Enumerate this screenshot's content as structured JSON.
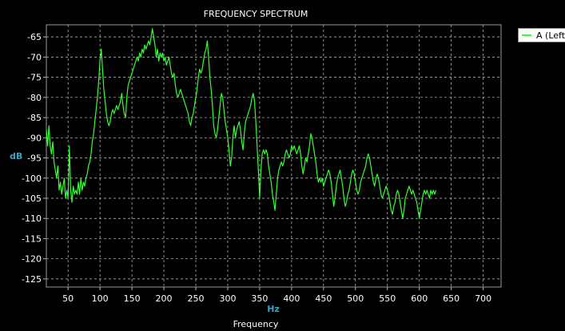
{
  "colors": {
    "background": "#000000",
    "grid": "#c8c8c8",
    "axis_label": "#3aa3c4",
    "text": "#ffffff"
  },
  "chart_data": {
    "type": "line",
    "title": "FREQUENCY SPECTRUM",
    "ylabel": "dB",
    "xlabel_units": "Hz",
    "footer_label": "Frequency",
    "grid": true,
    "legend_position": "top-right",
    "xlim": [
      16,
      728
    ],
    "ylim": [
      -127,
      -62
    ],
    "x_ticks": [
      50,
      100,
      150,
      200,
      250,
      300,
      350,
      400,
      450,
      500,
      550,
      600,
      650,
      700
    ],
    "y_ticks": [
      -65,
      -70,
      -75,
      -80,
      -85,
      -90,
      -95,
      -100,
      -105,
      -110,
      -115,
      -120,
      -125
    ],
    "series": [
      {
        "name": "A (Left)",
        "color": "#33ff33",
        "points": [
          [
            16,
            -88
          ],
          [
            18,
            -92
          ],
          [
            20,
            -87
          ],
          [
            22,
            -92
          ],
          [
            24,
            -94
          ],
          [
            26,
            -91
          ],
          [
            28,
            -96
          ],
          [
            30,
            -98
          ],
          [
            32,
            -100
          ],
          [
            34,
            -97
          ],
          [
            36,
            -103
          ],
          [
            38,
            -101
          ],
          [
            40,
            -104
          ],
          [
            42,
            -102
          ],
          [
            44,
            -100
          ],
          [
            46,
            -105
          ],
          [
            48,
            -103
          ],
          [
            50,
            -105
          ],
          [
            52,
            -92
          ],
          [
            54,
            -103
          ],
          [
            56,
            -106
          ],
          [
            58,
            -102
          ],
          [
            60,
            -104
          ],
          [
            62,
            -103
          ],
          [
            64,
            -104
          ],
          [
            66,
            -101
          ],
          [
            68,
            -104
          ],
          [
            70,
            -100
          ],
          [
            72,
            -103
          ],
          [
            74,
            -101
          ],
          [
            76,
            -102
          ],
          [
            78,
            -100
          ],
          [
            80,
            -99
          ],
          [
            82,
            -97
          ],
          [
            84,
            -96
          ],
          [
            86,
            -94
          ],
          [
            88,
            -91
          ],
          [
            90,
            -89
          ],
          [
            92,
            -86
          ],
          [
            94,
            -83
          ],
          [
            96,
            -80
          ],
          [
            98,
            -76
          ],
          [
            100,
            -71
          ],
          [
            102,
            -68
          ],
          [
            104,
            -73
          ],
          [
            106,
            -78
          ],
          [
            108,
            -81
          ],
          [
            110,
            -84
          ],
          [
            112,
            -86
          ],
          [
            114,
            -87
          ],
          [
            116,
            -86
          ],
          [
            118,
            -84
          ],
          [
            120,
            -83
          ],
          [
            122,
            -84
          ],
          [
            124,
            -83
          ],
          [
            126,
            -82
          ],
          [
            128,
            -83
          ],
          [
            130,
            -82
          ],
          [
            132,
            -81
          ],
          [
            134,
            -79
          ],
          [
            136,
            -82
          ],
          [
            138,
            -84
          ],
          [
            140,
            -85
          ],
          [
            142,
            -80
          ],
          [
            144,
            -77
          ],
          [
            146,
            -76
          ],
          [
            148,
            -75
          ],
          [
            150,
            -74
          ],
          [
            152,
            -73
          ],
          [
            154,
            -72
          ],
          [
            156,
            -71
          ],
          [
            158,
            -70
          ],
          [
            160,
            -71
          ],
          [
            162,
            -69
          ],
          [
            164,
            -70
          ],
          [
            166,
            -68
          ],
          [
            168,
            -69
          ],
          [
            170,
            -67
          ],
          [
            172,
            -68
          ],
          [
            174,
            -67
          ],
          [
            176,
            -66
          ],
          [
            178,
            -67
          ],
          [
            180,
            -65
          ],
          [
            182,
            -63
          ],
          [
            184,
            -65
          ],
          [
            186,
            -67
          ],
          [
            188,
            -70
          ],
          [
            190,
            -68
          ],
          [
            192,
            -71
          ],
          [
            194,
            -69
          ],
          [
            196,
            -70
          ],
          [
            198,
            -69
          ],
          [
            200,
            -71
          ],
          [
            202,
            -70
          ],
          [
            204,
            -72
          ],
          [
            206,
            -71
          ],
          [
            208,
            -70
          ],
          [
            210,
            -72
          ],
          [
            212,
            -74
          ],
          [
            214,
            -75
          ],
          [
            216,
            -74
          ],
          [
            218,
            -77
          ],
          [
            220,
            -79
          ],
          [
            222,
            -80
          ],
          [
            224,
            -79
          ],
          [
            226,
            -78
          ],
          [
            228,
            -79
          ],
          [
            230,
            -80
          ],
          [
            232,
            -81
          ],
          [
            234,
            -82
          ],
          [
            236,
            -83
          ],
          [
            238,
            -84
          ],
          [
            240,
            -86
          ],
          [
            242,
            -87
          ],
          [
            244,
            -85
          ],
          [
            246,
            -84
          ],
          [
            248,
            -82
          ],
          [
            250,
            -80
          ],
          [
            252,
            -78
          ],
          [
            254,
            -75
          ],
          [
            256,
            -73
          ],
          [
            258,
            -74
          ],
          [
            260,
            -73
          ],
          [
            262,
            -71
          ],
          [
            264,
            -69
          ],
          [
            266,
            -68
          ],
          [
            268,
            -66
          ],
          [
            270,
            -70
          ],
          [
            272,
            -75
          ],
          [
            274,
            -78
          ],
          [
            276,
            -82
          ],
          [
            278,
            -87
          ],
          [
            280,
            -89
          ],
          [
            282,
            -90
          ],
          [
            284,
            -88
          ],
          [
            286,
            -85
          ],
          [
            288,
            -82
          ],
          [
            290,
            -79
          ],
          [
            292,
            -80
          ],
          [
            294,
            -83
          ],
          [
            296,
            -86
          ],
          [
            298,
            -88
          ],
          [
            300,
            -90
          ],
          [
            302,
            -93
          ],
          [
            304,
            -97
          ],
          [
            306,
            -95
          ],
          [
            308,
            -90
          ],
          [
            310,
            -87
          ],
          [
            312,
            -90
          ],
          [
            314,
            -88
          ],
          [
            316,
            -87
          ],
          [
            318,
            -86
          ],
          [
            320,
            -88
          ],
          [
            322,
            -91
          ],
          [
            324,
            -93
          ],
          [
            326,
            -89
          ],
          [
            328,
            -86
          ],
          [
            330,
            -85
          ],
          [
            332,
            -84
          ],
          [
            334,
            -83
          ],
          [
            336,
            -82
          ],
          [
            338,
            -80
          ],
          [
            340,
            -79
          ],
          [
            342,
            -81
          ],
          [
            344,
            -86
          ],
          [
            346,
            -92
          ],
          [
            348,
            -98
          ],
          [
            350,
            -105
          ],
          [
            352,
            -98
          ],
          [
            354,
            -94
          ],
          [
            356,
            -93
          ],
          [
            358,
            -94
          ],
          [
            360,
            -93
          ],
          [
            362,
            -94
          ],
          [
            364,
            -97
          ],
          [
            366,
            -99
          ],
          [
            368,
            -101
          ],
          [
            370,
            -104
          ],
          [
            372,
            -106
          ],
          [
            374,
            -108
          ],
          [
            376,
            -104
          ],
          [
            378,
            -100
          ],
          [
            380,
            -98
          ],
          [
            382,
            -97
          ],
          [
            384,
            -96
          ],
          [
            386,
            -97
          ],
          [
            388,
            -96
          ],
          [
            390,
            -94
          ],
          [
            392,
            -93
          ],
          [
            394,
            -94
          ],
          [
            396,
            -95
          ],
          [
            398,
            -94
          ],
          [
            400,
            -92
          ],
          [
            402,
            -93
          ],
          [
            404,
            -92
          ],
          [
            406,
            -93
          ],
          [
            408,
            -94
          ],
          [
            410,
            -93
          ],
          [
            412,
            -92
          ],
          [
            414,
            -94
          ],
          [
            416,
            -97
          ],
          [
            418,
            -99
          ],
          [
            420,
            -97
          ],
          [
            422,
            -95
          ],
          [
            424,
            -96
          ],
          [
            426,
            -94
          ],
          [
            428,
            -92
          ],
          [
            430,
            -89
          ],
          [
            432,
            -90
          ],
          [
            434,
            -92
          ],
          [
            436,
            -94
          ],
          [
            438,
            -96
          ],
          [
            440,
            -99
          ],
          [
            442,
            -101
          ],
          [
            444,
            -100
          ],
          [
            446,
            -101
          ],
          [
            448,
            -100
          ],
          [
            450,
            -102
          ],
          [
            452,
            -101
          ],
          [
            454,
            -100
          ],
          [
            456,
            -99
          ],
          [
            458,
            -98
          ],
          [
            460,
            -99
          ],
          [
            462,
            -101
          ],
          [
            464,
            -104
          ],
          [
            466,
            -107
          ],
          [
            468,
            -105
          ],
          [
            470,
            -102
          ],
          [
            472,
            -100
          ],
          [
            474,
            -99
          ],
          [
            476,
            -98
          ],
          [
            478,
            -100
          ],
          [
            480,
            -102
          ],
          [
            482,
            -105
          ],
          [
            484,
            -107
          ],
          [
            486,
            -106
          ],
          [
            488,
            -104
          ],
          [
            490,
            -103
          ],
          [
            492,
            -101
          ],
          [
            494,
            -99
          ],
          [
            496,
            -98
          ],
          [
            498,
            -99
          ],
          [
            500,
            -101
          ],
          [
            502,
            -103
          ],
          [
            504,
            -104
          ],
          [
            506,
            -103
          ],
          [
            508,
            -101
          ],
          [
            510,
            -100
          ],
          [
            512,
            -99
          ],
          [
            514,
            -98
          ],
          [
            516,
            -97
          ],
          [
            518,
            -95
          ],
          [
            520,
            -94
          ],
          [
            522,
            -95
          ],
          [
            524,
            -97
          ],
          [
            526,
            -99
          ],
          [
            528,
            -101
          ],
          [
            530,
            -102
          ],
          [
            532,
            -100
          ],
          [
            534,
            -99
          ],
          [
            536,
            -100
          ],
          [
            538,
            -102
          ],
          [
            540,
            -104
          ],
          [
            542,
            -105
          ],
          [
            544,
            -104
          ],
          [
            546,
            -103
          ],
          [
            548,
            -102
          ],
          [
            550,
            -103
          ],
          [
            552,
            -104
          ],
          [
            554,
            -106
          ],
          [
            556,
            -108
          ],
          [
            558,
            -109
          ],
          [
            560,
            -107
          ],
          [
            562,
            -106
          ],
          [
            564,
            -104
          ],
          [
            566,
            -103
          ],
          [
            568,
            -104
          ],
          [
            570,
            -106
          ],
          [
            572,
            -108
          ],
          [
            574,
            -110
          ],
          [
            576,
            -108
          ],
          [
            578,
            -105
          ],
          [
            580,
            -104
          ],
          [
            582,
            -103
          ],
          [
            584,
            -102
          ],
          [
            586,
            -103
          ],
          [
            588,
            -104
          ],
          [
            590,
            -103
          ],
          [
            592,
            -104
          ],
          [
            594,
            -105
          ],
          [
            596,
            -106
          ],
          [
            598,
            -108
          ],
          [
            600,
            -110
          ],
          [
            602,
            -108
          ],
          [
            604,
            -106
          ],
          [
            606,
            -104
          ],
          [
            608,
            -103
          ],
          [
            610,
            -104
          ],
          [
            612,
            -103
          ],
          [
            614,
            -104
          ],
          [
            616,
            -105
          ],
          [
            618,
            -103
          ],
          [
            620,
            -104
          ],
          [
            622,
            -103
          ],
          [
            624,
            -104
          ],
          [
            626,
            -103
          ]
        ]
      }
    ]
  }
}
